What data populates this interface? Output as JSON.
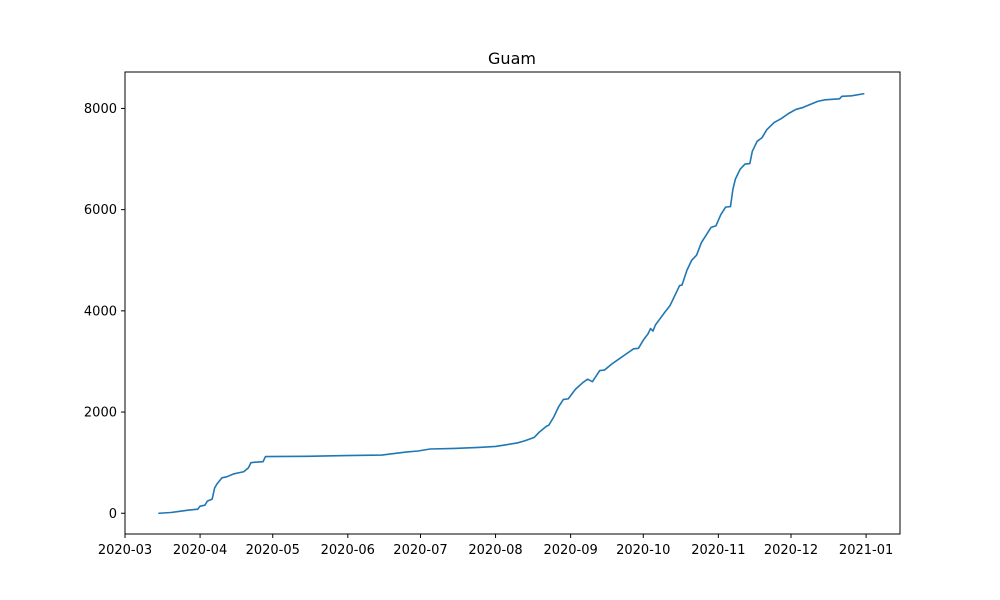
{
  "chart_data": {
    "type": "line",
    "title": "Guam",
    "xlabel": "",
    "ylabel": "",
    "x_axis_type": "date",
    "xlim": [
      "2020-03-01",
      "2021-01-15"
    ],
    "ylim": [
      -410,
      8720
    ],
    "x_ticks": [
      "2020-03",
      "2020-04",
      "2020-05",
      "2020-06",
      "2020-07",
      "2020-08",
      "2020-09",
      "2020-10",
      "2020-11",
      "2020-12",
      "2021-01"
    ],
    "x_tick_dates": [
      "2020-03-01",
      "2020-04-01",
      "2020-05-01",
      "2020-06-01",
      "2020-07-01",
      "2020-08-01",
      "2020-09-01",
      "2020-10-01",
      "2020-11-01",
      "2020-12-01",
      "2021-01-01"
    ],
    "y_ticks": [
      0,
      2000,
      4000,
      6000,
      8000
    ],
    "grid": false,
    "legend": "none",
    "series": [
      {
        "color": "#1f77b4",
        "x": [
          "2020-03-15",
          "2020-03-20",
          "2020-03-24",
          "2020-03-27",
          "2020-03-31",
          "2020-04-01",
          "2020-04-03",
          "2020-04-04",
          "2020-04-06",
          "2020-04-07",
          "2020-04-08",
          "2020-04-10",
          "2020-04-12",
          "2020-04-15",
          "2020-04-17",
          "2020-04-19",
          "2020-04-21",
          "2020-04-22",
          "2020-04-24",
          "2020-04-27",
          "2020-04-28",
          "2020-05-15",
          "2020-05-31",
          "2020-06-15",
          "2020-06-20",
          "2020-06-25",
          "2020-06-30",
          "2020-07-05",
          "2020-07-15",
          "2020-07-25",
          "2020-08-01",
          "2020-08-05",
          "2020-08-10",
          "2020-08-13",
          "2020-08-17",
          "2020-08-19",
          "2020-08-22",
          "2020-08-23",
          "2020-08-25",
          "2020-08-27",
          "2020-08-29",
          "2020-08-31",
          "2020-09-03",
          "2020-09-06",
          "2020-09-08",
          "2020-09-10",
          "2020-09-13",
          "2020-09-15",
          "2020-09-18",
          "2020-09-21",
          "2020-09-24",
          "2020-09-27",
          "2020-09-29",
          "2020-10-01",
          "2020-10-03",
          "2020-10-04",
          "2020-10-05",
          "2020-10-06",
          "2020-10-08",
          "2020-10-10",
          "2020-10-12",
          "2020-10-14",
          "2020-10-16",
          "2020-10-17",
          "2020-10-19",
          "2020-10-21",
          "2020-10-23",
          "2020-10-25",
          "2020-10-27",
          "2020-10-29",
          "2020-10-31",
          "2020-11-02",
          "2020-11-04",
          "2020-11-06",
          "2020-11-07",
          "2020-11-08",
          "2020-11-10",
          "2020-11-12",
          "2020-11-14",
          "2020-11-15",
          "2020-11-17",
          "2020-11-19",
          "2020-11-21",
          "2020-11-24",
          "2020-11-27",
          "2020-11-30",
          "2020-12-03",
          "2020-12-06",
          "2020-12-09",
          "2020-12-12",
          "2020-12-15",
          "2020-12-18",
          "2020-12-21",
          "2020-12-22",
          "2020-12-26",
          "2020-12-31"
        ],
        "y": [
          0,
          15,
          40,
          60,
          80,
          140,
          160,
          240,
          280,
          500,
          580,
          700,
          720,
          780,
          800,
          820,
          900,
          1000,
          1010,
          1020,
          1120,
          1125,
          1140,
          1150,
          1180,
          1210,
          1230,
          1270,
          1280,
          1300,
          1320,
          1350,
          1390,
          1430,
          1500,
          1600,
          1720,
          1740,
          1900,
          2100,
          2250,
          2260,
          2450,
          2580,
          2650,
          2600,
          2820,
          2830,
          2950,
          3050,
          3150,
          3250,
          3260,
          3420,
          3550,
          3650,
          3600,
          3720,
          3850,
          3980,
          4100,
          4300,
          4500,
          4510,
          4800,
          5000,
          5100,
          5350,
          5500,
          5650,
          5680,
          5900,
          6050,
          6060,
          6400,
          6600,
          6800,
          6900,
          6910,
          7150,
          7350,
          7420,
          7580,
          7720,
          7800,
          7900,
          7980,
          8020,
          8080,
          8140,
          8170,
          8180,
          8190,
          8240,
          8250,
          8290
        ]
      }
    ]
  }
}
